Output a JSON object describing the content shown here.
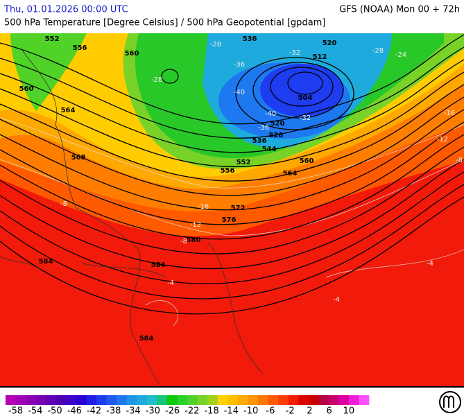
{
  "header": {
    "datetime": "Thu, 01.01.2026 00:00 UTC",
    "model": "GFS (NOAA) Mon 00 + 72h",
    "subtitle": "500 hPa Temperature [Degree Celsius] / 500 hPa Geopotential [gpdam]"
  },
  "map": {
    "height_labels": [
      "552",
      "556",
      "560",
      "560",
      "564",
      "568",
      "536",
      "520",
      "512",
      "504",
      "520",
      "528",
      "536",
      "544",
      "552",
      "556",
      "560",
      "564",
      "572",
      "576",
      "580",
      "584",
      "584",
      "584"
    ],
    "temperature_labels": [
      "-28",
      "-28",
      "-32",
      "-36",
      "-40",
      "-40",
      "-32",
      "-36",
      "-28",
      "-24",
      "-16",
      "-12",
      "-8",
      "-8",
      "-16",
      "-12",
      "-8",
      "-4",
      "-4",
      "-4"
    ]
  },
  "colorbar": {
    "colors": [
      "#b400b4",
      "#a000b4",
      "#8c00b4",
      "#7800b4",
      "#6400b4",
      "#5000b4",
      "#3c00c8",
      "#2800d2",
      "#1e1ee6",
      "#1e3cf0",
      "#1e5af0",
      "#1e78f0",
      "#1e96e6",
      "#1eaadc",
      "#1ebec8",
      "#14c878",
      "#0ac80a",
      "#28d228",
      "#50d228",
      "#78d228",
      "#a0d21e",
      "#ffd200",
      "#ffbe00",
      "#ffaa00",
      "#ff9600",
      "#ff7800",
      "#ff5a00",
      "#ff3c00",
      "#f01e00",
      "#dc0000",
      "#c80000",
      "#b4003c",
      "#c8006e",
      "#dc00a0",
      "#f01edc",
      "#ff50ff"
    ],
    "ticks": [
      -58,
      -54,
      -50,
      -46,
      -42,
      -38,
      -34,
      -30,
      -26,
      -22,
      -18,
      -14,
      -10,
      -6,
      -2,
      2,
      6,
      10
    ]
  }
}
